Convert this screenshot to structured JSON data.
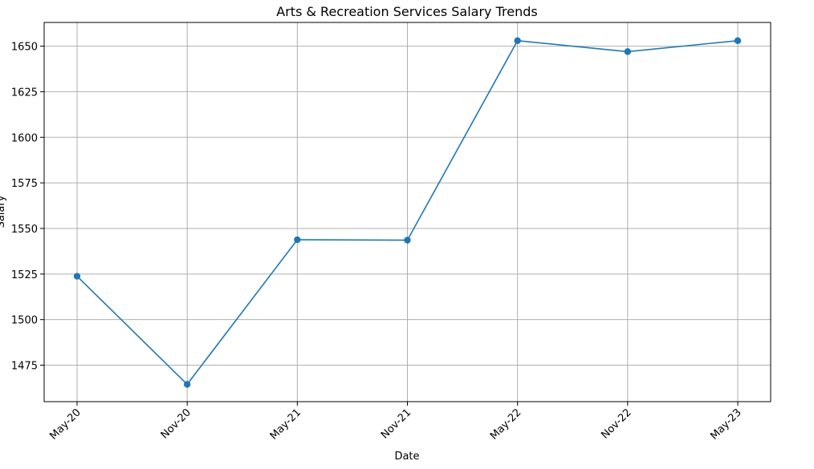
{
  "chart_data": {
    "type": "line",
    "title": "Arts & Recreation Services Salary Trends",
    "xlabel": "Date",
    "ylabel": "Salary",
    "categories": [
      "May-20",
      "Nov-20",
      "May-21",
      "Nov-21",
      "May-22",
      "Nov-22",
      "May-23"
    ],
    "series": [
      {
        "values": [
          1523.8,
          1464.5,
          1543.8,
          1543.6,
          1653.0,
          1647.0,
          1653.0
        ],
        "color": "#1f77b4"
      }
    ],
    "ylim": [
      1455,
      1663
    ],
    "yticks": [
      1475,
      1500,
      1525,
      1550,
      1575,
      1600,
      1625,
      1650
    ],
    "grid": true,
    "legend": false
  }
}
